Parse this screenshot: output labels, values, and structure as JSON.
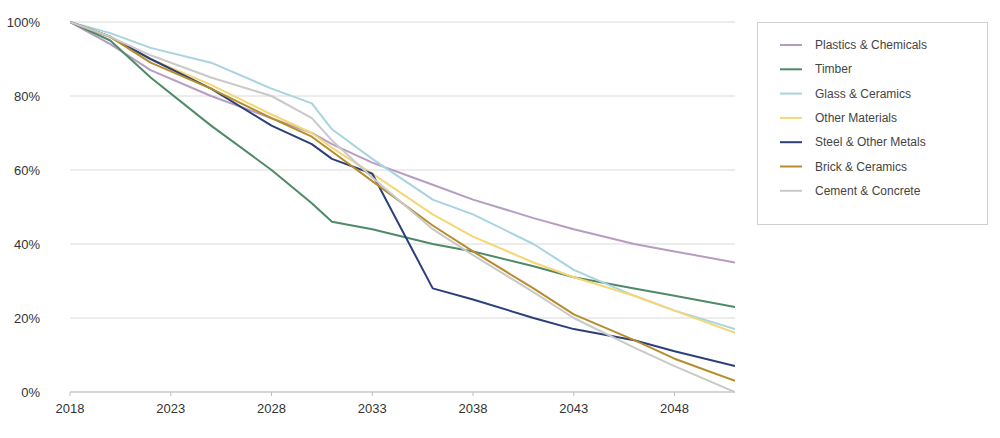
{
  "chart_data": {
    "type": "line",
    "x": [
      2018,
      2020,
      2022,
      2025,
      2028,
      2030,
      2031,
      2033,
      2036,
      2038,
      2041,
      2043,
      2046,
      2048,
      2051
    ],
    "xlim": [
      2018,
      2051
    ],
    "xticks": [
      2018,
      2023,
      2028,
      2033,
      2038,
      2043,
      2048
    ],
    "ylim": [
      0,
      100
    ],
    "yticks": [
      {
        "value": 0,
        "label": "0%"
      },
      {
        "value": 20,
        "label": "20%"
      },
      {
        "value": 40,
        "label": "40%"
      },
      {
        "value": 60,
        "label": "60%"
      },
      {
        "value": 80,
        "label": "80%"
      },
      {
        "value": 100,
        "label": "100%"
      }
    ],
    "grid": true,
    "legend": "right",
    "series": [
      {
        "name": "Plastics & Chemicals",
        "color": "#b79cc2",
        "values": [
          100,
          94,
          87,
          80,
          74,
          70,
          67,
          62,
          56,
          52,
          47,
          44,
          40,
          38,
          35
        ]
      },
      {
        "name": "Timber",
        "color": "#4e8a66",
        "values": [
          100,
          95,
          85,
          72,
          60,
          51,
          46,
          44,
          40,
          38,
          34,
          31,
          28,
          26,
          23
        ]
      },
      {
        "name": "Glass & Ceramics",
        "color": "#a8d3e0",
        "values": [
          100,
          97,
          93,
          89,
          82,
          78,
          71,
          63,
          52,
          48,
          40,
          33,
          26,
          22,
          17
        ]
      },
      {
        "name": "Other Materials",
        "color": "#f4d774",
        "values": [
          100,
          96,
          90,
          83,
          75,
          70,
          66,
          59,
          48,
          42,
          35,
          31,
          26,
          22,
          16
        ]
      },
      {
        "name": "Steel & Other Metals",
        "color": "#2b3f7a",
        "values": [
          100,
          96,
          90,
          82,
          72,
          67,
          63,
          59,
          28,
          25,
          20,
          17,
          14,
          11,
          7
        ]
      },
      {
        "name": "Brick & Ceramics",
        "color": "#b58d2c",
        "values": [
          100,
          96,
          89,
          82,
          74,
          69,
          65,
          57,
          45,
          38,
          28,
          21,
          14,
          9,
          3
        ]
      },
      {
        "name": "Cement & Concrete",
        "color": "#c9c9c9",
        "values": [
          100,
          96,
          91,
          85,
          80,
          74,
          68,
          58,
          44,
          37,
          27,
          20,
          12,
          7,
          0
        ]
      }
    ]
  }
}
